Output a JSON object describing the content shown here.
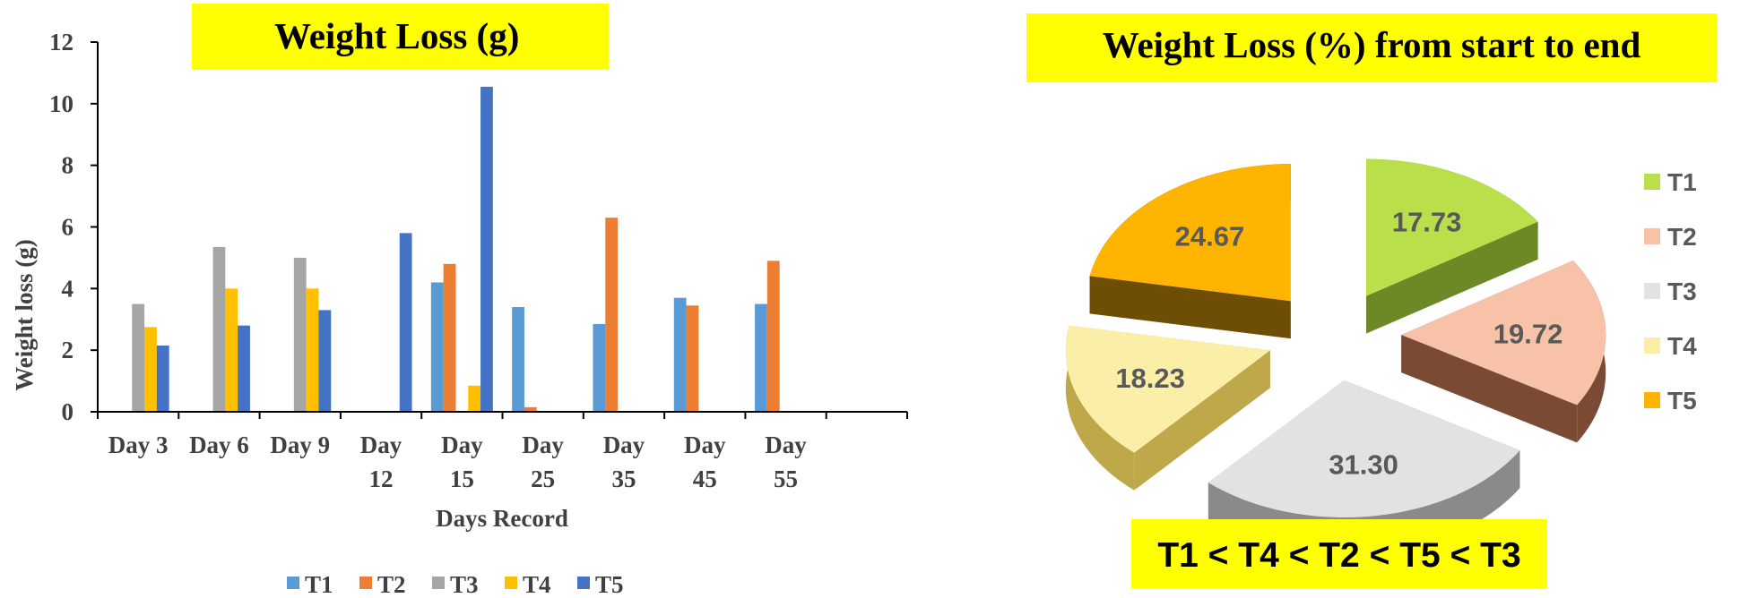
{
  "chart_data": [
    {
      "type": "bar",
      "title": "Weight Loss (g)",
      "xlabel": "Days Record",
      "ylabel": "Weight loss (g)",
      "ylim": [
        0,
        12
      ],
      "yticks": [
        0,
        2,
        4,
        6,
        8,
        10,
        12
      ],
      "grid": false,
      "legend_position": "bottom",
      "categories": [
        [
          "Day 3"
        ],
        [
          "Day 6"
        ],
        [
          "Day 9"
        ],
        [
          "Day",
          "12"
        ],
        [
          "Day",
          "15"
        ],
        [
          "Day",
          "25"
        ],
        [
          "Day",
          "35"
        ],
        [
          "Day",
          "45"
        ],
        [
          "Day",
          "55"
        ],
        [
          ""
        ]
      ],
      "series": [
        {
          "name": "T1",
          "color": "#5B9BD5",
          "values": [
            0,
            0,
            0,
            0,
            4.2,
            3.4,
            2.85,
            3.7,
            3.5,
            0
          ]
        },
        {
          "name": "T2",
          "color": "#ED7D31",
          "values": [
            0,
            0,
            0,
            0,
            4.8,
            0.15,
            6.3,
            3.45,
            4.9,
            0
          ]
        },
        {
          "name": "T3",
          "color": "#A5A5A5",
          "values": [
            3.5,
            5.35,
            5.0,
            0,
            0,
            0,
            0,
            0,
            0,
            0
          ]
        },
        {
          "name": "T4",
          "color": "#FFC000",
          "values": [
            2.75,
            4.0,
            4.0,
            0,
            0.85,
            0,
            0,
            0,
            0,
            0
          ]
        },
        {
          "name": "T5",
          "color": "#4472C4",
          "values": [
            2.15,
            2.8,
            3.3,
            5.8,
            10.55,
            0,
            0,
            0,
            0,
            0
          ]
        }
      ]
    },
    {
      "type": "pie",
      "title": "Weight Loss (%) from start to end",
      "legend_position": "right",
      "slices": [
        {
          "name": "T1",
          "label": "17.73",
          "value": 17.73,
          "color": "#B9E04A",
          "side": "#6B8A26"
        },
        {
          "name": "T2",
          "label": "19.72",
          "value": 19.72,
          "color": "#F8C2A8",
          "side": "#7B4A35"
        },
        {
          "name": "T3",
          "label": "31.30",
          "value": 31.3,
          "color": "#E2E2E2",
          "side": "#8A8A8A"
        },
        {
          "name": "T4",
          "label": "18.23",
          "value": 18.23,
          "color": "#FBEFA8",
          "side": "#BFA84A"
        },
        {
          "name": "T5",
          "label": "24.67",
          "value": 24.67,
          "color": "#FFB400",
          "side": "#6E4E05"
        }
      ],
      "annotation": "T1 < T4 < T2 < T5 < T3"
    }
  ],
  "colors": {
    "title_highlight": "#FFFF00",
    "text_dark": "#404040",
    "pie_label_text": "#595959"
  }
}
